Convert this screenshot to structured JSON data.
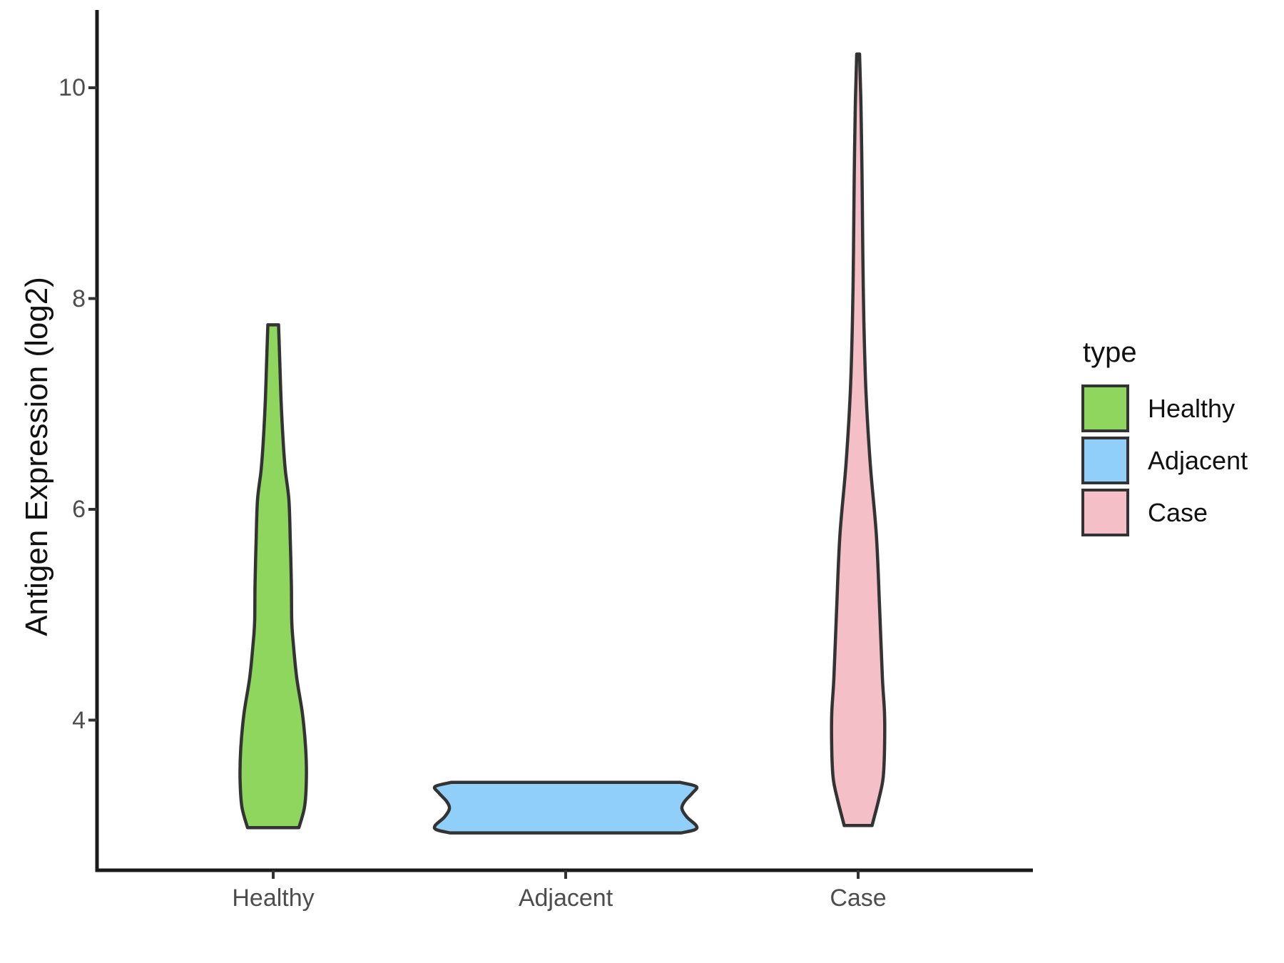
{
  "figure": {
    "y_axis": {
      "title": "Antigen Expression (log2)",
      "ticks": [
        {
          "label": "10",
          "value": 10
        },
        {
          "label": "8",
          "value": 8
        },
        {
          "label": "6",
          "value": 6
        },
        {
          "label": "4",
          "value": 4
        }
      ]
    },
    "x_axis": {
      "categories": [
        "Healthy",
        "Adjacent",
        "Case"
      ]
    },
    "legend": {
      "title": "type",
      "items": [
        {
          "label": "Healthy",
          "color": "#8FD65F"
        },
        {
          "label": "Adjacent",
          "color": "#8FCFFA"
        },
        {
          "label": "Case",
          "color": "#F5BFC8"
        }
      ]
    },
    "colors": {
      "outline": "#333333",
      "axis": "#1a1a1a",
      "tick": "#333333",
      "tick_label": "#4d4d4d",
      "background": "#ffffff"
    }
  },
  "chart_data": {
    "type": "violin",
    "title": "",
    "xlabel": "",
    "ylabel": "Antigen Expression (log2)",
    "ylim": [
      2.6,
      10.7
    ],
    "y_ticks": [
      4,
      6,
      8,
      10
    ],
    "grid": false,
    "legend_position": "right",
    "legend_title": "type",
    "categories": [
      "Healthy",
      "Adjacent",
      "Case"
    ],
    "groups": [
      {
        "name": "Healthy",
        "fill": "#8FD65F",
        "min": 2.98,
        "max": 7.75,
        "widest_at": 3.45,
        "profile": [
          [
            7.75,
            7.5
          ],
          [
            7.45,
            9
          ],
          [
            7.04,
            11
          ],
          [
            6.64,
            14
          ],
          [
            6.37,
            17
          ],
          [
            6.09,
            22
          ],
          [
            5.69,
            24
          ],
          [
            5.28,
            25.5
          ],
          [
            4.94,
            26
          ],
          [
            4.74,
            28
          ],
          [
            4.4,
            33
          ],
          [
            4.06,
            41
          ],
          [
            3.73,
            45.5
          ],
          [
            3.45,
            46.5
          ],
          [
            3.18,
            44
          ],
          [
            2.98,
            36
          ]
        ]
      },
      {
        "name": "Adjacent",
        "fill": "#8FCFFA",
        "min": 2.93,
        "max": 3.41,
        "widest_at": 3.37,
        "profile": [
          [
            3.41,
            160
          ],
          [
            3.37,
            183
          ],
          [
            3.31,
            178
          ],
          [
            3.23,
            167
          ],
          [
            3.16,
            163
          ],
          [
            3.08,
            170
          ],
          [
            3.0,
            183
          ],
          [
            2.96,
            181
          ],
          [
            2.93,
            162
          ]
        ]
      },
      {
        "name": "Case",
        "fill": "#F5BFC8",
        "min": 3.0,
        "max": 10.32,
        "widest_at": 4.0,
        "profile": [
          [
            10.32,
            2
          ],
          [
            9.82,
            4
          ],
          [
            9.14,
            5.5
          ],
          [
            8.46,
            6.5
          ],
          [
            7.79,
            8
          ],
          [
            7.11,
            11
          ],
          [
            6.43,
            17
          ],
          [
            5.76,
            25.5
          ],
          [
            5.08,
            30
          ],
          [
            4.4,
            34
          ],
          [
            4.06,
            37
          ],
          [
            3.73,
            37
          ],
          [
            3.45,
            35
          ],
          [
            3.25,
            29
          ],
          [
            3.0,
            19.5
          ]
        ]
      }
    ]
  }
}
